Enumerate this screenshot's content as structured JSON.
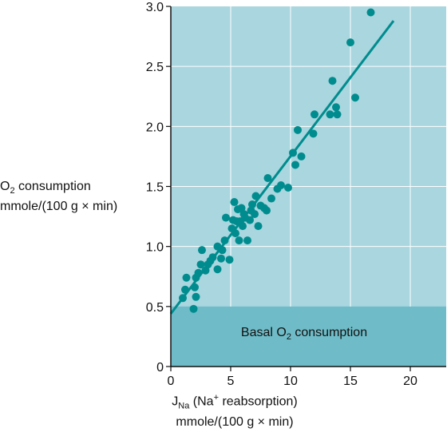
{
  "chart_data": {
    "type": "scatter",
    "title": "",
    "xlim": [
      0,
      23
    ],
    "ylim": [
      0,
      3.0
    ],
    "x_ticks": [
      "0",
      "5",
      "10",
      "15",
      "20"
    ],
    "y_ticks": [
      "0",
      "0.5",
      "1.0",
      "1.5",
      "2.0",
      "2.5",
      "3.0"
    ],
    "ylabel": {
      "prefix": "O",
      "sub": "2",
      "suffix": " consumption",
      "line2": "mmole/(100 g × min)"
    },
    "xlabel": {
      "prefix": "J",
      "sub": "Na",
      "mid": " (Na",
      "sup": "+",
      "suffix": " reabsorption)",
      "line2": "mmole/(100 g × min)"
    },
    "band": {
      "y_min": 0,
      "y_max": 0.5,
      "label_prefix": "Basal O",
      "label_sub": "2",
      "label_suffix": " consumption"
    },
    "fit_line": {
      "x": [
        0,
        18.6
      ],
      "y": [
        0.44,
        2.88
      ]
    },
    "points": [
      [
        1.0,
        0.57
      ],
      [
        1.2,
        0.64
      ],
      [
        1.3,
        0.74
      ],
      [
        1.9,
        0.48
      ],
      [
        2.0,
        0.66
      ],
      [
        2.1,
        0.58
      ],
      [
        2.1,
        0.74
      ],
      [
        2.3,
        0.78
      ],
      [
        2.5,
        0.85
      ],
      [
        2.6,
        0.97
      ],
      [
        2.9,
        0.8
      ],
      [
        3.1,
        0.85
      ],
      [
        3.3,
        0.88
      ],
      [
        3.5,
        0.91
      ],
      [
        3.9,
        0.81
      ],
      [
        3.9,
        1.0
      ],
      [
        4.2,
        0.9
      ],
      [
        4.3,
        0.97
      ],
      [
        4.5,
        1.05
      ],
      [
        4.6,
        1.24
      ],
      [
        4.9,
        0.89
      ],
      [
        5.1,
        1.15
      ],
      [
        5.2,
        1.22
      ],
      [
        5.3,
        1.37
      ],
      [
        5.4,
        1.11
      ],
      [
        5.5,
        1.21
      ],
      [
        5.6,
        1.31
      ],
      [
        5.7,
        1.05
      ],
      [
        5.8,
        1.21
      ],
      [
        5.9,
        1.32
      ],
      [
        6.0,
        1.17
      ],
      [
        6.1,
        1.27
      ],
      [
        6.2,
        1.24
      ],
      [
        6.4,
        1.05
      ],
      [
        6.6,
        1.22
      ],
      [
        6.7,
        1.3
      ],
      [
        6.8,
        1.35
      ],
      [
        7.0,
        1.27
      ],
      [
        7.1,
        1.42
      ],
      [
        7.3,
        1.17
      ],
      [
        7.5,
        1.34
      ],
      [
        7.8,
        1.32
      ],
      [
        8.0,
        1.3
      ],
      [
        8.1,
        1.57
      ],
      [
        8.4,
        1.4
      ],
      [
        8.9,
        1.48
      ],
      [
        9.2,
        1.51
      ],
      [
        9.8,
        1.49
      ],
      [
        10.2,
        1.78
      ],
      [
        10.4,
        1.68
      ],
      [
        10.6,
        1.97
      ],
      [
        10.9,
        1.75
      ],
      [
        11.9,
        1.94
      ],
      [
        12.0,
        2.1
      ],
      [
        13.3,
        2.1
      ],
      [
        13.5,
        2.38
      ],
      [
        13.8,
        2.16
      ],
      [
        13.9,
        2.1
      ],
      [
        15.0,
        2.7
      ],
      [
        15.4,
        2.24
      ],
      [
        16.7,
        2.95
      ]
    ],
    "colors": {
      "plot_bg": "#a9d6df",
      "band": "#6fbcc8",
      "points": "#008c8e",
      "line": "#008c8e",
      "grid": "#ffffff"
    },
    "grid": true
  }
}
